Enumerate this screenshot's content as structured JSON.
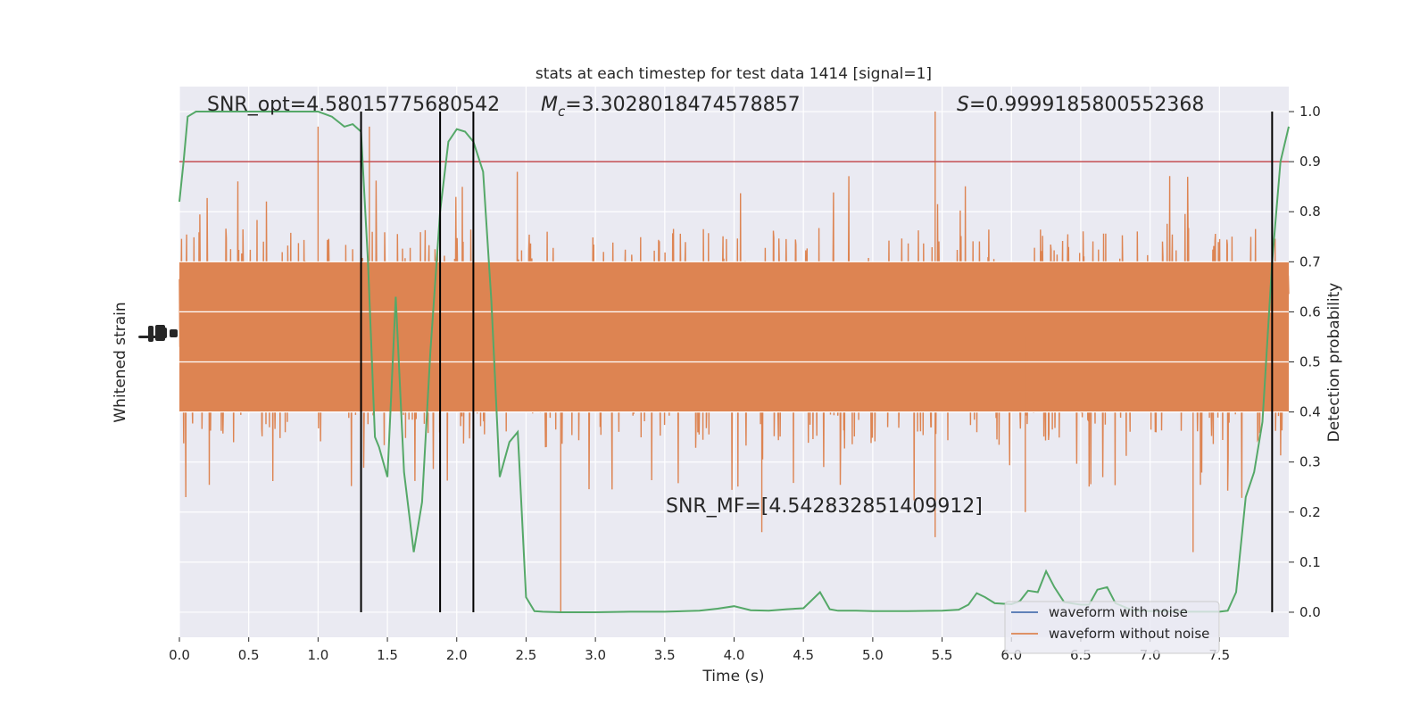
{
  "chart_data": {
    "type": "line",
    "title": "stats at each timestep for test data 1414 [signal=1]",
    "xlabel": "Time (s)",
    "ylabel_left": "Whitened strain",
    "ylabel_right": "Detection probability",
    "xlim": [
      0.0,
      8.0
    ],
    "ylim_right": [
      -0.05,
      1.05
    ],
    "x_ticks": [
      0.0,
      0.5,
      1.0,
      1.5,
      2.0,
      2.5,
      3.0,
      3.5,
      4.0,
      4.5,
      5.0,
      5.5,
      6.0,
      6.5,
      7.0,
      7.5
    ],
    "x_tick_labels": [
      "0.0",
      "0.5",
      "1.0",
      "1.5",
      "2.0",
      "2.5",
      "3.0",
      "3.5",
      "4.0",
      "4.5",
      "5.0",
      "5.5",
      "6.0",
      "6.5",
      "7.0",
      "7.5"
    ],
    "y_ticks_right": [
      0.0,
      0.1,
      0.2,
      0.3,
      0.4,
      0.5,
      0.6,
      0.7,
      0.8,
      0.9,
      1.0
    ],
    "y_tick_labels_right": [
      "0.0",
      "0.1",
      "0.2",
      "0.3",
      "0.4",
      "0.5",
      "0.6",
      "0.7",
      "0.8",
      "0.9",
      "1.0"
    ],
    "grid": true,
    "legend_position": "lower-right",
    "colors": {
      "background": "#eaeaf2",
      "grid": "#ffffff",
      "noise_waveform": "#4c72b0",
      "clean_waveform": "#dd8452",
      "probability": "#55a868",
      "threshold": "#c44e52",
      "detection_lines": "#000000"
    },
    "annotations": {
      "snr_opt": "SNR_opt=4.58015775680542",
      "mc_symbol": "M",
      "mc_sub": "c",
      "mc_value": "=3.3028018474578857",
      "s_symbol": "S",
      "s_value": "=0.9999185800552368",
      "snr_mf": "SNR_MF=[4.542832851409912]"
    },
    "threshold": 0.9,
    "detection_times": [
      1.31,
      1.88,
      2.12,
      7.88
    ],
    "series": [
      {
        "name": "waveform with noise",
        "color": "#4c72b0"
      },
      {
        "name": "waveform without noise",
        "color": "#dd8452",
        "center": 0.55,
        "body_range": [
          0.4,
          0.7
        ],
        "spike_range": [
          0.0,
          1.0
        ]
      }
    ],
    "probability": {
      "x": [
        0.0,
        0.03,
        0.06,
        0.12,
        0.2,
        0.3,
        0.5,
        0.7,
        0.9,
        1.0,
        1.1,
        1.19,
        1.25,
        1.31,
        1.36,
        1.41,
        1.44,
        1.5,
        1.56,
        1.62,
        1.69,
        1.75,
        1.81,
        1.88,
        1.94,
        2.0,
        2.06,
        2.12,
        2.19,
        2.25,
        2.31,
        2.38,
        2.44,
        2.5,
        2.56,
        2.62,
        2.75,
        3.0,
        3.25,
        3.5,
        3.75,
        3.88,
        4.0,
        4.12,
        4.25,
        4.38,
        4.5,
        4.62,
        4.69,
        4.75,
        4.88,
        5.0,
        5.25,
        5.5,
        5.62,
        5.69,
        5.75,
        5.81,
        5.88,
        6.0,
        6.06,
        6.12,
        6.19,
        6.25,
        6.31,
        6.38,
        6.5,
        6.56,
        6.62,
        6.69,
        6.75,
        6.88,
        7.0,
        7.25,
        7.5,
        7.56,
        7.62,
        7.69,
        7.75,
        7.81,
        7.88,
        7.94,
        8.0
      ],
      "values": [
        0.82,
        0.9,
        0.99,
        1.0,
        1.0,
        1.0,
        1.0,
        1.0,
        1.0,
        1.0,
        0.99,
        0.97,
        0.975,
        0.96,
        0.7,
        0.35,
        0.33,
        0.27,
        0.63,
        0.28,
        0.12,
        0.22,
        0.52,
        0.8,
        0.94,
        0.965,
        0.96,
        0.94,
        0.88,
        0.62,
        0.27,
        0.34,
        0.36,
        0.03,
        0.002,
        0.001,
        0.0,
        0.0,
        0.001,
        0.001,
        0.003,
        0.007,
        0.012,
        0.004,
        0.003,
        0.006,
        0.008,
        0.04,
        0.006,
        0.003,
        0.003,
        0.002,
        0.002,
        0.003,
        0.005,
        0.015,
        0.038,
        0.03,
        0.018,
        0.016,
        0.022,
        0.043,
        0.04,
        0.082,
        0.05,
        0.02,
        0.015,
        0.015,
        0.045,
        0.05,
        0.018,
        0.003,
        0.002,
        0.001,
        0.001,
        0.003,
        0.04,
        0.23,
        0.28,
        0.38,
        0.7,
        0.9,
        0.97
      ]
    }
  }
}
